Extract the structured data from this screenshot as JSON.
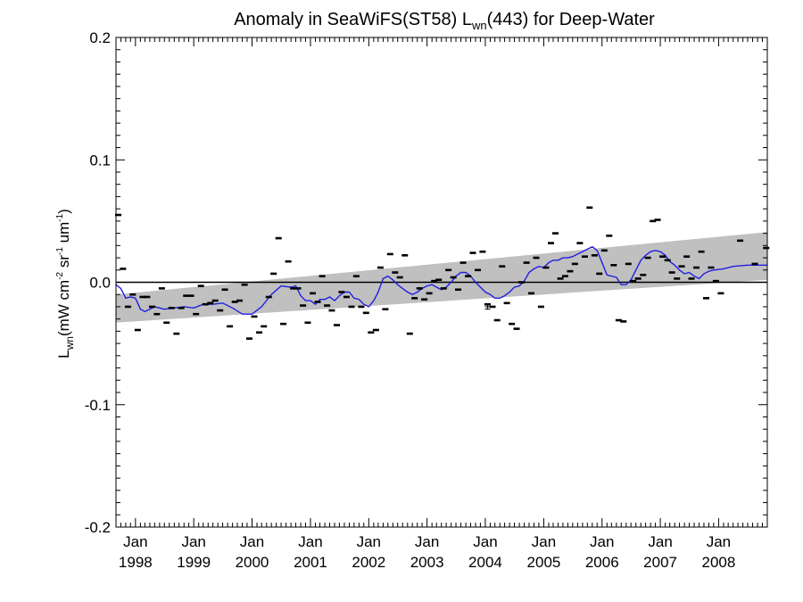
{
  "chart_data": {
    "type": "scatter",
    "title_main": "Anomaly in SeaWiFS(ST58) L",
    "title_sub": "wn",
    "title_tail": "(443) for Deep-Water",
    "ylabel_base": "L",
    "ylabel_sub": "wn",
    "ylabel_unit_parts": [
      "(mW cm",
      "-2",
      " sr",
      "-1",
      " um",
      "-1",
      ")"
    ],
    "ylim": [
      -0.2,
      0.2
    ],
    "xlim": [
      "1997-09-01",
      "2008-11-01"
    ],
    "y_ticks": [
      {
        "value": 0.2,
        "label": "0.2"
      },
      {
        "value": 0.1,
        "label": "0.1"
      },
      {
        "value": 0.0,
        "label": "0.0"
      },
      {
        "value": -0.1,
        "label": "-0.1"
      },
      {
        "value": -0.2,
        "label": "-0.2"
      }
    ],
    "x_ticks": [
      {
        "date": "1998-01-01",
        "month": "Jan",
        "year": "1998"
      },
      {
        "date": "1999-01-01",
        "month": "Jan",
        "year": "1999"
      },
      {
        "date": "2000-01-01",
        "month": "Jan",
        "year": "2000"
      },
      {
        "date": "2001-01-01",
        "month": "Jan",
        "year": "2001"
      },
      {
        "date": "2002-01-01",
        "month": "Jan",
        "year": "2002"
      },
      {
        "date": "2003-01-01",
        "month": "Jan",
        "year": "2003"
      },
      {
        "date": "2004-01-01",
        "month": "Jan",
        "year": "2004"
      },
      {
        "date": "2005-01-01",
        "month": "Jan",
        "year": "2005"
      },
      {
        "date": "2006-01-01",
        "month": "Jan",
        "year": "2006"
      },
      {
        "date": "2007-01-01",
        "month": "Jan",
        "year": "2007"
      },
      {
        "date": "2008-01-01",
        "month": "Jan",
        "year": "2008"
      }
    ],
    "zero_line": 0.0,
    "trend_band": {
      "start_date": "1997-09-01",
      "end_date": "2008-11-01",
      "lower_start": -0.033,
      "upper_start": -0.01,
      "lower_end": 0.002,
      "upper_end": 0.041,
      "color": "#c0c0c0"
    },
    "points": [
      {
        "date": "1997-09-15",
        "y": 0.055
      },
      {
        "date": "1997-10-15",
        "y": 0.011
      },
      {
        "date": "1997-11-15",
        "y": -0.02
      },
      {
        "date": "1997-12-15",
        "y": -0.01
      },
      {
        "date": "1998-01-15",
        "y": -0.039
      },
      {
        "date": "1998-02-15",
        "y": -0.012
      },
      {
        "date": "1998-03-15",
        "y": -0.012
      },
      {
        "date": "1998-04-15",
        "y": -0.02
      },
      {
        "date": "1998-05-15",
        "y": -0.026
      },
      {
        "date": "1998-06-15",
        "y": -0.005
      },
      {
        "date": "1998-07-15",
        "y": -0.033
      },
      {
        "date": "1998-08-15",
        "y": -0.021
      },
      {
        "date": "1998-09-15",
        "y": -0.042
      },
      {
        "date": "1998-10-15",
        "y": -0.021
      },
      {
        "date": "1998-11-15",
        "y": -0.011
      },
      {
        "date": "1998-12-15",
        "y": -0.011
      },
      {
        "date": "1999-01-15",
        "y": -0.026
      },
      {
        "date": "1999-02-15",
        "y": -0.003
      },
      {
        "date": "1999-03-15",
        "y": -0.018
      },
      {
        "date": "1999-04-15",
        "y": -0.017
      },
      {
        "date": "1999-05-15",
        "y": -0.015
      },
      {
        "date": "1999-06-15",
        "y": -0.023
      },
      {
        "date": "1999-07-15",
        "y": -0.006
      },
      {
        "date": "1999-08-15",
        "y": -0.036
      },
      {
        "date": "1999-09-15",
        "y": -0.016
      },
      {
        "date": "1999-10-15",
        "y": -0.015
      },
      {
        "date": "1999-11-15",
        "y": -0.002
      },
      {
        "date": "1999-12-15",
        "y": -0.046
      },
      {
        "date": "2000-01-15",
        "y": -0.028
      },
      {
        "date": "2000-02-15",
        "y": -0.041
      },
      {
        "date": "2000-03-15",
        "y": -0.036
      },
      {
        "date": "2000-04-15",
        "y": -0.012
      },
      {
        "date": "2000-05-15",
        "y": 0.007
      },
      {
        "date": "2000-06-15",
        "y": 0.036
      },
      {
        "date": "2000-07-15",
        "y": -0.034
      },
      {
        "date": "2000-08-15",
        "y": 0.017
      },
      {
        "date": "2000-09-15",
        "y": -0.005
      },
      {
        "date": "2000-10-15",
        "y": -0.005
      },
      {
        "date": "2000-11-15",
        "y": -0.019
      },
      {
        "date": "2000-12-15",
        "y": -0.033
      },
      {
        "date": "2001-01-15",
        "y": -0.009
      },
      {
        "date": "2001-02-15",
        "y": -0.016
      },
      {
        "date": "2001-03-15",
        "y": 0.005
      },
      {
        "date": "2001-04-15",
        "y": -0.019
      },
      {
        "date": "2001-05-15",
        "y": -0.023
      },
      {
        "date": "2001-06-15",
        "y": -0.035
      },
      {
        "date": "2001-07-15",
        "y": -0.008
      },
      {
        "date": "2001-08-15",
        "y": -0.012
      },
      {
        "date": "2001-09-15",
        "y": -0.02
      },
      {
        "date": "2001-10-15",
        "y": 0.005
      },
      {
        "date": "2001-11-15",
        "y": -0.02
      },
      {
        "date": "2001-12-15",
        "y": -0.025
      },
      {
        "date": "2002-01-15",
        "y": -0.041
      },
      {
        "date": "2002-02-15",
        "y": -0.039
      },
      {
        "date": "2002-03-15",
        "y": 0.012
      },
      {
        "date": "2002-04-15",
        "y": -0.022
      },
      {
        "date": "2002-05-15",
        "y": 0.023
      },
      {
        "date": "2002-06-15",
        "y": 0.008
      },
      {
        "date": "2002-07-15",
        "y": 0.004
      },
      {
        "date": "2002-08-15",
        "y": 0.022
      },
      {
        "date": "2002-09-15",
        "y": -0.042
      },
      {
        "date": "2002-10-15",
        "y": -0.013
      },
      {
        "date": "2002-11-15",
        "y": -0.005
      },
      {
        "date": "2002-12-15",
        "y": -0.014
      },
      {
        "date": "2003-01-15",
        "y": -0.009
      },
      {
        "date": "2003-02-15",
        "y": 0.001
      },
      {
        "date": "2003-03-15",
        "y": 0.002
      },
      {
        "date": "2003-04-15",
        "y": -0.005
      },
      {
        "date": "2003-05-15",
        "y": 0.01
      },
      {
        "date": "2003-06-15",
        "y": 0.004
      },
      {
        "date": "2003-07-15",
        "y": -0.006
      },
      {
        "date": "2003-08-15",
        "y": 0.016
      },
      {
        "date": "2003-09-15",
        "y": 0.005
      },
      {
        "date": "2003-10-15",
        "y": 0.024
      },
      {
        "date": "2003-11-15",
        "y": 0.01
      },
      {
        "date": "2003-12-15",
        "y": 0.025
      },
      {
        "date": "2004-01-15",
        "y": -0.018
      },
      {
        "date": "2004-02-15",
        "y": -0.02
      },
      {
        "date": "2004-03-15",
        "y": -0.031
      },
      {
        "date": "2004-04-15",
        "y": 0.013
      },
      {
        "date": "2004-05-15",
        "y": -0.017
      },
      {
        "date": "2004-06-15",
        "y": -0.034
      },
      {
        "date": "2004-07-15",
        "y": -0.038
      },
      {
        "date": "2004-08-15",
        "y": 0.0
      },
      {
        "date": "2004-09-15",
        "y": 0.016
      },
      {
        "date": "2004-10-15",
        "y": -0.009
      },
      {
        "date": "2004-11-15",
        "y": 0.02
      },
      {
        "date": "2004-12-15",
        "y": -0.02
      },
      {
        "date": "2005-01-15",
        "y": 0.012
      },
      {
        "date": "2005-02-15",
        "y": 0.032
      },
      {
        "date": "2005-03-15",
        "y": 0.04
      },
      {
        "date": "2005-04-15",
        "y": 0.003
      },
      {
        "date": "2005-05-15",
        "y": 0.005
      },
      {
        "date": "2005-06-15",
        "y": 0.009
      },
      {
        "date": "2005-07-15",
        "y": 0.015
      },
      {
        "date": "2005-08-15",
        "y": 0.032
      },
      {
        "date": "2005-09-15",
        "y": 0.021
      },
      {
        "date": "2005-10-15",
        "y": 0.061
      },
      {
        "date": "2005-11-15",
        "y": 0.022
      },
      {
        "date": "2005-12-15",
        "y": 0.007
      },
      {
        "date": "2006-01-15",
        "y": 0.026
      },
      {
        "date": "2006-02-15",
        "y": 0.038
      },
      {
        "date": "2006-03-15",
        "y": 0.014
      },
      {
        "date": "2006-04-15",
        "y": -0.031
      },
      {
        "date": "2006-05-15",
        "y": -0.032
      },
      {
        "date": "2006-06-15",
        "y": 0.015
      },
      {
        "date": "2006-07-15",
        "y": 0.001
      },
      {
        "date": "2006-08-15",
        "y": 0.003
      },
      {
        "date": "2006-09-15",
        "y": 0.006
      },
      {
        "date": "2006-10-15",
        "y": 0.02
      },
      {
        "date": "2006-11-15",
        "y": 0.05
      },
      {
        "date": "2006-12-15",
        "y": 0.051
      },
      {
        "date": "2007-01-15",
        "y": 0.021
      },
      {
        "date": "2007-02-15",
        "y": 0.018
      },
      {
        "date": "2007-03-15",
        "y": 0.008
      },
      {
        "date": "2007-04-15",
        "y": 0.003
      },
      {
        "date": "2007-05-15",
        "y": 0.013
      },
      {
        "date": "2007-06-15",
        "y": 0.021
      },
      {
        "date": "2007-07-15",
        "y": 0.003
      },
      {
        "date": "2007-08-15",
        "y": 0.012
      },
      {
        "date": "2007-09-15",
        "y": 0.025
      },
      {
        "date": "2007-10-15",
        "y": -0.013
      },
      {
        "date": "2007-11-15",
        "y": 0.012
      },
      {
        "date": "2007-12-15",
        "y": 0.001
      },
      {
        "date": "2008-01-15",
        "y": -0.009
      },
      {
        "date": "2008-05-15",
        "y": 0.034
      },
      {
        "date": "2008-08-15",
        "y": 0.015
      },
      {
        "date": "2008-10-25",
        "y": 0.028
      }
    ],
    "error_bar_point": {
      "date": "2004-01-15",
      "y": -0.02,
      "err": 0.002
    },
    "running_mean": {
      "color": "#1f1fe0",
      "points": [
        {
          "date": "1997-09-01",
          "y": -0.002
        },
        {
          "date": "1997-10-01",
          "y": -0.005
        },
        {
          "date": "1997-11-01",
          "y": -0.013
        },
        {
          "date": "1997-12-01",
          "y": -0.012
        },
        {
          "date": "1998-01-01",
          "y": -0.013
        },
        {
          "date": "1998-02-01",
          "y": -0.022
        },
        {
          "date": "1998-03-01",
          "y": -0.024
        },
        {
          "date": "1998-04-01",
          "y": -0.022
        },
        {
          "date": "1998-05-01",
          "y": -0.02
        },
        {
          "date": "1998-07-01",
          "y": -0.022
        },
        {
          "date": "1998-09-01",
          "y": -0.021
        },
        {
          "date": "1998-11-01",
          "y": -0.02
        },
        {
          "date": "1999-01-01",
          "y": -0.021
        },
        {
          "date": "1999-03-01",
          "y": -0.018
        },
        {
          "date": "1999-05-01",
          "y": -0.018
        },
        {
          "date": "1999-07-01",
          "y": -0.017
        },
        {
          "date": "1999-09-01",
          "y": -0.021
        },
        {
          "date": "1999-11-01",
          "y": -0.026
        },
        {
          "date": "2000-01-01",
          "y": -0.026
        },
        {
          "date": "2000-03-01",
          "y": -0.02
        },
        {
          "date": "2000-05-01",
          "y": -0.01
        },
        {
          "date": "2000-07-01",
          "y": -0.003
        },
        {
          "date": "2000-09-01",
          "y": -0.004
        },
        {
          "date": "2000-10-01",
          "y": -0.003
        },
        {
          "date": "2000-11-01",
          "y": -0.011
        },
        {
          "date": "2000-12-01",
          "y": -0.015
        },
        {
          "date": "2001-01-01",
          "y": -0.015
        },
        {
          "date": "2001-02-01",
          "y": -0.018
        },
        {
          "date": "2001-03-01",
          "y": -0.014
        },
        {
          "date": "2001-04-01",
          "y": -0.014
        },
        {
          "date": "2001-05-01",
          "y": -0.012
        },
        {
          "date": "2001-06-01",
          "y": -0.015
        },
        {
          "date": "2001-07-01",
          "y": -0.011
        },
        {
          "date": "2001-08-01",
          "y": -0.008
        },
        {
          "date": "2001-09-01",
          "y": -0.008
        },
        {
          "date": "2001-10-01",
          "y": -0.013
        },
        {
          "date": "2001-11-01",
          "y": -0.014
        },
        {
          "date": "2001-12-01",
          "y": -0.018
        },
        {
          "date": "2002-01-01",
          "y": -0.02
        },
        {
          "date": "2002-02-01",
          "y": -0.015
        },
        {
          "date": "2002-03-01",
          "y": -0.008
        },
        {
          "date": "2002-04-01",
          "y": 0.003
        },
        {
          "date": "2002-05-01",
          "y": 0.005
        },
        {
          "date": "2002-06-01",
          "y": 0.002
        },
        {
          "date": "2002-07-01",
          "y": -0.002
        },
        {
          "date": "2002-08-01",
          "y": -0.005
        },
        {
          "date": "2002-09-01",
          "y": -0.008
        },
        {
          "date": "2002-10-01",
          "y": -0.01
        },
        {
          "date": "2002-11-01",
          "y": -0.008
        },
        {
          "date": "2002-12-01",
          "y": -0.005
        },
        {
          "date": "2003-01-01",
          "y": -0.003
        },
        {
          "date": "2003-02-01",
          "y": -0.002
        },
        {
          "date": "2003-03-01",
          "y": -0.004
        },
        {
          "date": "2003-04-01",
          "y": -0.006
        },
        {
          "date": "2003-05-01",
          "y": -0.004
        },
        {
          "date": "2003-06-01",
          "y": 0.0
        },
        {
          "date": "2003-07-01",
          "y": 0.005
        },
        {
          "date": "2003-08-01",
          "y": 0.008
        },
        {
          "date": "2003-09-01",
          "y": 0.008
        },
        {
          "date": "2003-10-01",
          "y": 0.005
        },
        {
          "date": "2003-11-01",
          "y": 0.0
        },
        {
          "date": "2003-12-01",
          "y": -0.004
        },
        {
          "date": "2004-01-01",
          "y": -0.008
        },
        {
          "date": "2004-02-01",
          "y": -0.01
        },
        {
          "date": "2004-03-01",
          "y": -0.013
        },
        {
          "date": "2004-04-01",
          "y": -0.013
        },
        {
          "date": "2004-05-01",
          "y": -0.011
        },
        {
          "date": "2004-06-01",
          "y": -0.008
        },
        {
          "date": "2004-07-01",
          "y": -0.004
        },
        {
          "date": "2004-08-01",
          "y": -0.003
        },
        {
          "date": "2004-09-01",
          "y": 0.001
        },
        {
          "date": "2004-10-01",
          "y": 0.008
        },
        {
          "date": "2004-11-01",
          "y": 0.011
        },
        {
          "date": "2004-12-01",
          "y": 0.013
        },
        {
          "date": "2005-01-01",
          "y": 0.012
        },
        {
          "date": "2005-02-01",
          "y": 0.016
        },
        {
          "date": "2005-03-01",
          "y": 0.018
        },
        {
          "date": "2005-04-01",
          "y": 0.018
        },
        {
          "date": "2005-05-01",
          "y": 0.02
        },
        {
          "date": "2005-06-01",
          "y": 0.02
        },
        {
          "date": "2005-07-01",
          "y": 0.021
        },
        {
          "date": "2005-08-01",
          "y": 0.023
        },
        {
          "date": "2005-09-01",
          "y": 0.025
        },
        {
          "date": "2005-10-01",
          "y": 0.027
        },
        {
          "date": "2005-11-01",
          "y": 0.029
        },
        {
          "date": "2005-12-01",
          "y": 0.026
        },
        {
          "date": "2006-01-01",
          "y": 0.016
        },
        {
          "date": "2006-02-01",
          "y": 0.006
        },
        {
          "date": "2006-03-01",
          "y": 0.005
        },
        {
          "date": "2006-04-01",
          "y": 0.004
        },
        {
          "date": "2006-05-01",
          "y": -0.002
        },
        {
          "date": "2006-06-01",
          "y": -0.002
        },
        {
          "date": "2006-07-01",
          "y": 0.002
        },
        {
          "date": "2006-08-01",
          "y": 0.01
        },
        {
          "date": "2006-09-01",
          "y": 0.018
        },
        {
          "date": "2006-10-01",
          "y": 0.022
        },
        {
          "date": "2006-11-01",
          "y": 0.025
        },
        {
          "date": "2006-12-01",
          "y": 0.026
        },
        {
          "date": "2007-01-01",
          "y": 0.025
        },
        {
          "date": "2007-02-01",
          "y": 0.022
        },
        {
          "date": "2007-03-01",
          "y": 0.017
        },
        {
          "date": "2007-04-01",
          "y": 0.014
        },
        {
          "date": "2007-05-01",
          "y": 0.01
        },
        {
          "date": "2007-06-01",
          "y": 0.007
        },
        {
          "date": "2007-07-01",
          "y": 0.008
        },
        {
          "date": "2007-08-01",
          "y": 0.005
        },
        {
          "date": "2007-09-01",
          "y": 0.003
        },
        {
          "date": "2007-10-01",
          "y": 0.007
        },
        {
          "date": "2007-11-01",
          "y": 0.009
        },
        {
          "date": "2007-12-01",
          "y": 0.01
        },
        {
          "date": "2008-02-01",
          "y": 0.011
        },
        {
          "date": "2008-04-01",
          "y": 0.013
        },
        {
          "date": "2008-07-01",
          "y": 0.014
        },
        {
          "date": "2008-11-01",
          "y": 0.014
        }
      ]
    }
  }
}
